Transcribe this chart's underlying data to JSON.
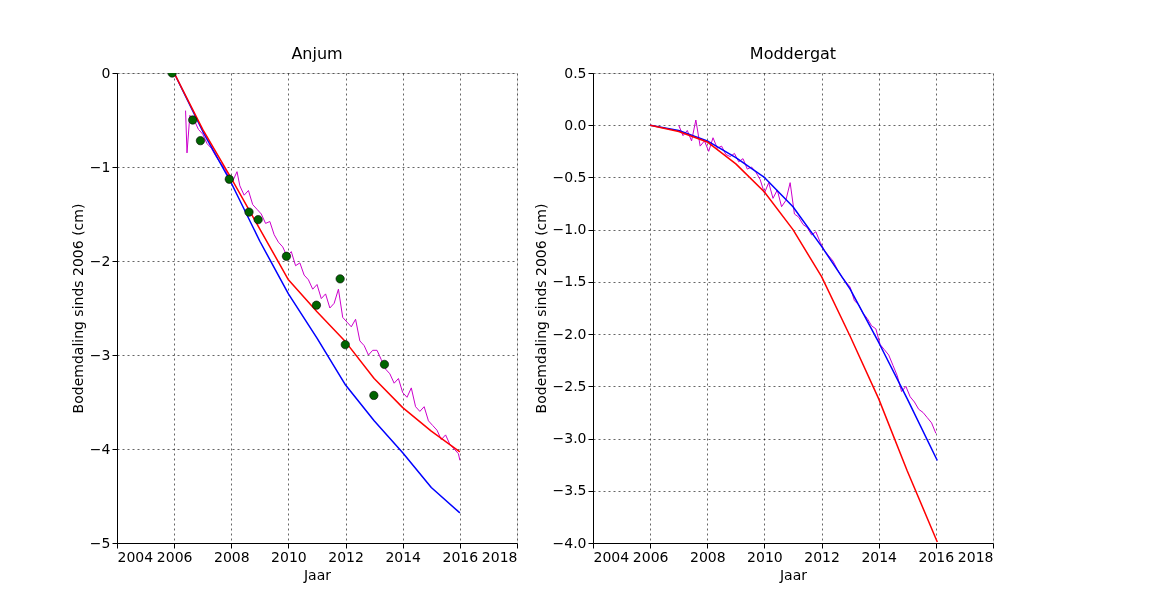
{
  "chart_data": [
    {
      "type": "line",
      "title": "Anjum",
      "xlabel": "Jaar",
      "ylabel": "Bodemdaling sinds 2006 (cm)",
      "xlim": [
        2004,
        2018
      ],
      "xticks": [
        2004,
        2006,
        2008,
        2010,
        2012,
        2014,
        2016,
        2018
      ],
      "ylim": [
        -5,
        0
      ],
      "yticks": [
        {
          "value": -5,
          "label": "−5"
        },
        {
          "value": -4,
          "label": "−4"
        },
        {
          "value": -3,
          "label": "−3"
        },
        {
          "value": -2,
          "label": "−2"
        },
        {
          "value": -1,
          "label": "−1"
        },
        0
      ],
      "grid": true,
      "series": [
        {
          "color": "#cc00cc",
          "x": [
            2006.4,
            2006.45,
            2006.55,
            2006.7,
            2006.85,
            2007.0,
            2007.15,
            2007.3,
            2007.45,
            2007.6,
            2007.75,
            2007.9,
            2008.05,
            2008.2,
            2008.3,
            2008.45,
            2008.6,
            2008.75,
            2008.9,
            2009.05,
            2009.2,
            2009.35,
            2009.5,
            2009.65,
            2009.8,
            2009.95,
            2010.1,
            2010.25,
            2010.4,
            2010.55,
            2010.7,
            2010.85,
            2011.0,
            2011.15,
            2011.3,
            2011.45,
            2011.6,
            2011.75,
            2011.9,
            2012.05,
            2012.2,
            2012.35,
            2012.5,
            2012.65,
            2012.8,
            2012.95,
            2013.1,
            2013.25,
            2013.4,
            2013.55,
            2013.7,
            2013.85,
            2014.0,
            2014.15,
            2014.3,
            2014.45,
            2014.6,
            2014.75,
            2014.9,
            2015.05,
            2015.2,
            2015.35,
            2015.5,
            2015.65,
            2015.8,
            2015.95,
            2016.0
          ],
          "values": [
            -0.4,
            -0.85,
            -0.45,
            -0.5,
            -0.6,
            -0.65,
            -0.75,
            -0.8,
            -0.88,
            -0.95,
            -1.0,
            -1.1,
            -1.15,
            -1.05,
            -1.2,
            -1.3,
            -1.25,
            -1.4,
            -1.45,
            -1.5,
            -1.6,
            -1.58,
            -1.72,
            -1.8,
            -1.85,
            -1.95,
            -1.9,
            -2.05,
            -2.02,
            -2.15,
            -2.2,
            -2.3,
            -2.25,
            -2.4,
            -2.35,
            -2.5,
            -2.45,
            -2.3,
            -2.6,
            -2.65,
            -2.7,
            -2.62,
            -2.85,
            -2.9,
            -3.0,
            -2.95,
            -2.95,
            -3.05,
            -3.15,
            -3.2,
            -3.3,
            -3.25,
            -3.4,
            -3.45,
            -3.35,
            -3.55,
            -3.6,
            -3.55,
            -3.7,
            -3.75,
            -3.8,
            -3.9,
            -3.85,
            -3.95,
            -4.0,
            -4.05,
            -4.12
          ]
        },
        {
          "color": "#0000ff",
          "x": [
            2006,
            2007,
            2008,
            2009,
            2010,
            2011,
            2012,
            2013,
            2014,
            2015,
            2016
          ],
          "values": [
            0,
            -0.62,
            -1.17,
            -1.79,
            -2.35,
            -2.82,
            -3.32,
            -3.7,
            -4.04,
            -4.41,
            -4.68
          ]
        },
        {
          "color": "#ff0000",
          "x": [
            2006,
            2007,
            2008,
            2009,
            2010,
            2011,
            2012,
            2013,
            2014,
            2015,
            2016
          ],
          "values": [
            0,
            -0.6,
            -1.12,
            -1.66,
            -2.2,
            -2.54,
            -2.86,
            -3.25,
            -3.56,
            -3.81,
            -4.03
          ]
        },
        {
          "type": "scatter",
          "marker": "circle",
          "color": "#006400",
          "x": [
            2005.93,
            2006.65,
            2006.92,
            2007.93,
            2008.62,
            2008.94,
            2009.93,
            2010.98,
            2011.81,
            2011.99,
            2013.36,
            2012.99
          ],
          "values": [
            0,
            -0.5,
            -0.72,
            -1.13,
            -1.48,
            -1.56,
            -1.95,
            -2.47,
            -2.19,
            -2.89,
            -3.1,
            -3.43
          ]
        }
      ]
    },
    {
      "type": "line",
      "title": "Moddergat",
      "xlabel": "Jaar",
      "ylabel": "Bodemdaling sinds 2006 (cm)",
      "xlim": [
        2004,
        2018
      ],
      "xticks": [
        2004,
        2006,
        2008,
        2010,
        2012,
        2014,
        2016,
        2018
      ],
      "ylim": [
        -4.0,
        0.5
      ],
      "yticks": [
        {
          "value": -4.0,
          "label": "−4.0"
        },
        {
          "value": -3.5,
          "label": "−3.5"
        },
        {
          "value": -3.0,
          "label": "−3.0"
        },
        {
          "value": -2.5,
          "label": "−2.5"
        },
        {
          "value": -2.0,
          "label": "−2.0"
        },
        {
          "value": -1.5,
          "label": "−1.5"
        },
        {
          "value": -1.0,
          "label": "−1.0"
        },
        {
          "value": -0.5,
          "label": "−0.5"
        },
        {
          "value": 0.0,
          "label": "0.0"
        },
        {
          "value": 0.5,
          "label": "0.5"
        }
      ],
      "grid": true,
      "series": [
        {
          "color": "#cc00cc",
          "x": [
            2007.0,
            2007.15,
            2007.3,
            2007.45,
            2007.6,
            2007.75,
            2007.9,
            2008.05,
            2008.2,
            2008.35,
            2008.5,
            2008.65,
            2008.8,
            2008.95,
            2009.1,
            2009.25,
            2009.4,
            2009.55,
            2009.7,
            2009.85,
            2010.0,
            2010.15,
            2010.3,
            2010.45,
            2010.6,
            2010.75,
            2010.9,
            2011.05,
            2011.2,
            2011.35,
            2011.5,
            2011.65,
            2011.8,
            2011.95,
            2012.1,
            2012.25,
            2012.4,
            2012.55,
            2012.7,
            2012.85,
            2013.0,
            2013.15,
            2013.3,
            2013.45,
            2013.6,
            2013.75,
            2013.9,
            2014.05,
            2014.2,
            2014.35,
            2014.5,
            2014.65,
            2014.8,
            2014.95,
            2015.1,
            2015.25,
            2015.4,
            2015.55,
            2015.7,
            2015.85,
            2016.0
          ],
          "values": [
            0.0,
            -0.1,
            -0.05,
            -0.15,
            0.05,
            -0.2,
            -0.15,
            -0.25,
            -0.12,
            -0.22,
            -0.2,
            -0.28,
            -0.3,
            -0.27,
            -0.35,
            -0.32,
            -0.42,
            -0.4,
            -0.45,
            -0.52,
            -0.65,
            -0.55,
            -0.7,
            -0.62,
            -0.78,
            -0.72,
            -0.55,
            -0.85,
            -0.88,
            -0.95,
            -0.98,
            -1.05,
            -1.02,
            -1.12,
            -1.2,
            -1.25,
            -1.3,
            -1.38,
            -1.45,
            -1.5,
            -1.55,
            -1.68,
            -1.72,
            -1.8,
            -1.85,
            -1.92,
            -1.95,
            -2.1,
            -2.15,
            -2.2,
            -2.3,
            -2.4,
            -2.55,
            -2.5,
            -2.6,
            -2.65,
            -2.72,
            -2.75,
            -2.8,
            -2.85,
            -2.95
          ]
        },
        {
          "color": "#0000ff",
          "x": [
            2006,
            2007,
            2008,
            2009,
            2010,
            2011,
            2012,
            2013,
            2014,
            2015,
            2016.05
          ],
          "values": [
            0,
            -0.05,
            -0.15,
            -0.31,
            -0.5,
            -0.78,
            -1.16,
            -1.57,
            -2.08,
            -2.62,
            -3.21
          ]
        },
        {
          "color": "#ff0000",
          "x": [
            2006,
            2007,
            2008,
            2009,
            2010,
            2011,
            2012,
            2013,
            2014,
            2015,
            2016.05
          ],
          "values": [
            0,
            -0.06,
            -0.16,
            -0.37,
            -0.64,
            -1.0,
            -1.45,
            -2.02,
            -2.62,
            -3.31,
            -3.99
          ]
        }
      ]
    }
  ]
}
